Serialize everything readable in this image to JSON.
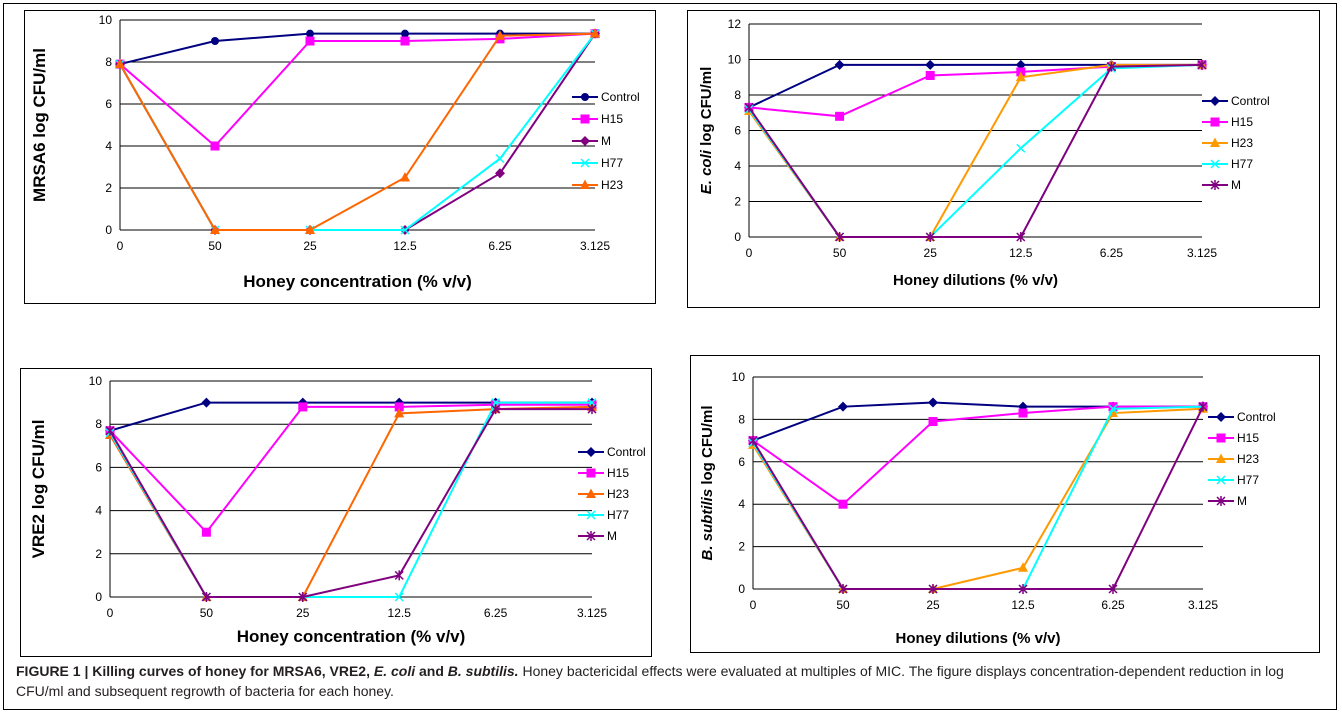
{
  "chart_data": [
    {
      "type": "line",
      "ylabel": "MRSA6 log CFU/ml",
      "xlabel": "Honey concentration (% v/v)",
      "categories": [
        "0",
        "50",
        "25",
        "12.5",
        "6.25",
        "3.125"
      ],
      "ylim": [
        0,
        10
      ],
      "yticks": [
        "0",
        "2",
        "4",
        "6",
        "8",
        "10"
      ],
      "grid": true,
      "legend_position": "right",
      "series": [
        {
          "name": "Control",
          "color": "#000080",
          "marker": "circle",
          "values": [
            7.9,
            9.0,
            9.35,
            9.35,
            9.35,
            9.35
          ]
        },
        {
          "name": "H15",
          "color": "#ff00ff",
          "marker": "square",
          "values": [
            7.9,
            4.0,
            9.0,
            9.0,
            9.1,
            9.35
          ]
        },
        {
          "name": "M",
          "color": "#800080",
          "marker": "diamond",
          "values": [
            7.9,
            0,
            0,
            0,
            2.7,
            9.35
          ]
        },
        {
          "name": "H77",
          "color": "#00ffff",
          "marker": "x",
          "values": [
            7.9,
            0,
            0,
            0,
            3.4,
            9.35
          ]
        },
        {
          "name": "H23",
          "color": "#ff6600",
          "marker": "triangle",
          "values": [
            7.9,
            0,
            0,
            2.5,
            9.25,
            9.35
          ]
        }
      ]
    },
    {
      "type": "line",
      "ylabel_italic": "E. coli",
      "ylabel": " log CFU/ml",
      "xlabel": "Honey dilutions (% v/v)",
      "categories": [
        "0",
        "50",
        "25",
        "12.5",
        "6.25",
        "3.125"
      ],
      "ylim": [
        0,
        12
      ],
      "yticks": [
        "0",
        "2",
        "4",
        "6",
        "8",
        "10",
        "12"
      ],
      "grid": true,
      "legend_position": "right",
      "series": [
        {
          "name": "Control",
          "color": "#000080",
          "marker": "diamond",
          "values": [
            7.3,
            9.7,
            9.7,
            9.7,
            9.7,
            9.7
          ]
        },
        {
          "name": "H15",
          "color": "#ff00ff",
          "marker": "square",
          "values": [
            7.3,
            6.8,
            9.1,
            9.3,
            9.6,
            9.7
          ]
        },
        {
          "name": "H23",
          "color": "#ff9900",
          "marker": "triangle",
          "values": [
            7.1,
            0,
            0,
            9.0,
            9.7,
            9.7
          ]
        },
        {
          "name": "H77",
          "color": "#00ffff",
          "marker": "x",
          "values": [
            7.2,
            0,
            0,
            5.0,
            9.5,
            9.7
          ]
        },
        {
          "name": "M",
          "color": "#800080",
          "marker": "star",
          "values": [
            7.3,
            0,
            0,
            0,
            9.6,
            9.7
          ]
        }
      ]
    },
    {
      "type": "line",
      "ylabel": "VRE2 log CFU/ml",
      "xlabel": "Honey concentration (% v/v)",
      "categories": [
        "0",
        "50",
        "25",
        "12.5",
        "6.25",
        "3.125"
      ],
      "ylim": [
        0,
        10
      ],
      "yticks": [
        "0",
        "2",
        "4",
        "6",
        "8",
        "10"
      ],
      "grid": true,
      "legend_position": "right",
      "series": [
        {
          "name": "Control",
          "color": "#000080",
          "marker": "diamond",
          "values": [
            7.7,
            9.0,
            9.0,
            9.0,
            9.0,
            9.0
          ]
        },
        {
          "name": "H15",
          "color": "#ff00ff",
          "marker": "square",
          "values": [
            7.7,
            3.0,
            8.8,
            8.8,
            8.9,
            8.9
          ]
        },
        {
          "name": "H23",
          "color": "#ff6600",
          "marker": "triangle",
          "values": [
            7.5,
            0,
            0,
            8.5,
            8.7,
            8.8
          ]
        },
        {
          "name": "H77",
          "color": "#00ffff",
          "marker": "x",
          "values": [
            7.6,
            0,
            0,
            0,
            9.0,
            9.0
          ]
        },
        {
          "name": "M",
          "color": "#800080",
          "marker": "star",
          "values": [
            7.7,
            0,
            0,
            1.0,
            8.7,
            8.7
          ]
        }
      ]
    },
    {
      "type": "line",
      "ylabel_italic": "B. subtilis",
      "ylabel": " log CFU/ml",
      "xlabel": "Honey dilutions (% v/v)",
      "categories": [
        "0",
        "50",
        "25",
        "12.5",
        "6.25",
        "3.125"
      ],
      "ylim": [
        0,
        10
      ],
      "yticks": [
        "0",
        "2",
        "4",
        "6",
        "8",
        "10"
      ],
      "grid": true,
      "legend_position": "right",
      "series": [
        {
          "name": "Control",
          "color": "#000080",
          "marker": "diamond",
          "values": [
            7.0,
            8.6,
            8.8,
            8.6,
            8.6,
            8.6
          ]
        },
        {
          "name": "H15",
          "color": "#ff00ff",
          "marker": "square",
          "values": [
            7.0,
            4.0,
            7.9,
            8.3,
            8.6,
            8.6
          ]
        },
        {
          "name": "H23",
          "color": "#ff9900",
          "marker": "triangle",
          "values": [
            6.8,
            0,
            0,
            1.0,
            8.3,
            8.5
          ]
        },
        {
          "name": "H77",
          "color": "#00ffff",
          "marker": "x",
          "values": [
            6.9,
            0,
            0,
            0,
            8.5,
            8.6
          ]
        },
        {
          "name": "M",
          "color": "#800080",
          "marker": "star",
          "values": [
            7.0,
            0,
            0,
            0,
            0,
            8.6
          ]
        }
      ]
    }
  ],
  "caption": {
    "label": "FIGURE 1 | Killing curves of honey for MRSA6, VRE2, ",
    "label_i1": "E. coli",
    "label_and": " and ",
    "label_i2": "B. subtilis.",
    "text": " Honey bactericidal effects were evaluated at multiples of MIC. The figure displays concentration-dependent reduction in log CFU/ml and subsequent regrowth of bacteria for each honey."
  }
}
